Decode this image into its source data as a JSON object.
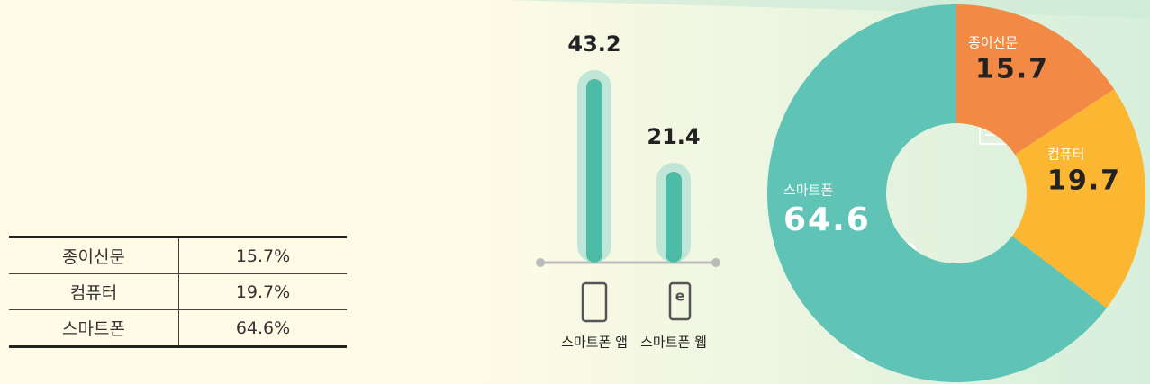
{
  "table": {
    "rows": [
      [
        "종이신문",
        "15.7%"
      ],
      [
        "컴퓨터",
        "19.7%"
      ],
      [
        "스마트폰",
        "64.6%"
      ]
    ]
  },
  "chart_data": [
    {
      "type": "bar",
      "categories": [
        "스마트폰 앱",
        "스마트폰 웹"
      ],
      "values": [
        43.2,
        21.4
      ],
      "color": "#4dbba6"
    },
    {
      "type": "pie",
      "categories": [
        "종이신문",
        "컴퓨터",
        "스마트폰"
      ],
      "values": [
        15.7,
        19.7,
        64.6
      ],
      "colors": [
        "#f28a45",
        "#fbb731",
        "#5fc3b5"
      ]
    }
  ]
}
